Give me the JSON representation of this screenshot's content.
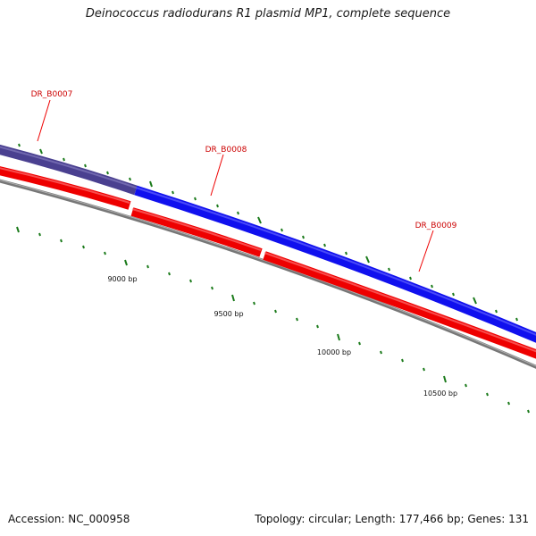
{
  "title": "Deinococcus radiodurans R1 plasmid MP1, complete sequence",
  "accession": "Accession: NC_000958",
  "summary": "Topology: circular; Length: 177,466 bp; Genes: 131",
  "genes": [
    {
      "label": "DR_B0007",
      "color": "#d40000"
    },
    {
      "label": "DR_B0008",
      "color": "#d40000"
    },
    {
      "label": "DR_B0009",
      "color": "#d40000"
    }
  ],
  "scale_labels": [
    "9000 bp",
    "9500 bp",
    "10000 bp",
    "10500 bp"
  ],
  "colors": {
    "forward_gene": "#1010ee",
    "forward_gene_faded": "#4a4090",
    "reverse_gene": "#ee0000",
    "backbone": "#8a8a8a",
    "tick": "#1a7a1a",
    "label": "#cc0000",
    "text": "#111111"
  }
}
